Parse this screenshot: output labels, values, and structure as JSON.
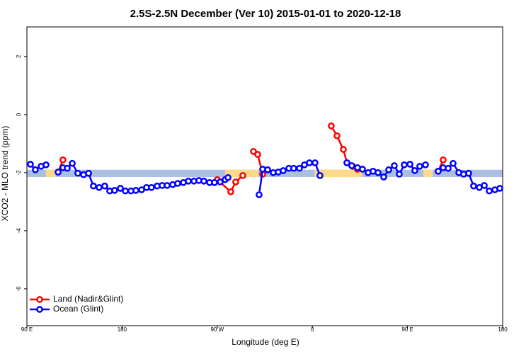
{
  "chart_data": {
    "type": "line",
    "title": "2.5S-2.5N December (Ver 10)   2015-01-01 to 2020-12-18",
    "x_label": "Longitude (deg E)",
    "y_label": "XCO2 - MLO trend (ppm)",
    "xlim": [
      90,
      540
    ],
    "xticks": [
      {
        "value": 90,
        "label": "90 E"
      },
      {
        "value": 180,
        "label": "180"
      },
      {
        "value": 270,
        "label": "90 W"
      },
      {
        "value": 360,
        "label": "0"
      },
      {
        "value": 450,
        "label": "90 E"
      },
      {
        "value": 540,
        "label": "180"
      }
    ],
    "ylim": [
      -7.27,
      3.02
    ],
    "yticks": [
      -6,
      -4,
      -2,
      0,
      2
    ],
    "legend": "bottom-left",
    "band": {
      "ylim": [
        -2.15,
        -1.9
      ],
      "color": "#a9c0e2",
      "land_color": "#fdd98a",
      "land_ranges": [
        [
          108,
          117
        ],
        [
          277.5,
          309
        ],
        [
          362,
          407
        ],
        [
          465,
          474
        ]
      ]
    },
    "series": [
      {
        "name": "Land (Nadir&Glint)",
        "color": "#ff0000",
        "x": [
          119.5,
          124.1,
          null,
          270.1,
          282.8,
          287.5,
          294.2,
          null,
          304.3,
          308.3,
          313.0,
          null,
          377.9,
          383.3,
          389.3,
          392.7,
          398.0,
          402.7,
          null,
          479.0,
          483.7
        ],
        "values": [
          -1.98,
          -1.56,
          null,
          -2.24,
          -2.66,
          -2.32,
          -2.1,
          null,
          -1.27,
          -1.37,
          -2.05,
          null,
          -0.39,
          -0.73,
          -1.2,
          -1.66,
          -1.78,
          -1.88,
          null,
          -1.95,
          -1.56
        ]
      },
      {
        "name": "Ocean (Glint)",
        "color": "#0000ff",
        "x": [
          93.3,
          98.0,
          103.5,
          108.1,
          null,
          119.5,
          124.1,
          128.2,
          132.9,
          138.2,
          143.6,
          148.3,
          152.9,
          158.3,
          163.6,
          168.3,
          173.0,
          178.4,
          183.1,
          188.4,
          193.1,
          198.5,
          203.2,
          207.8,
          213.2,
          217.9,
          222.6,
          227.9,
          232.6,
          238.0,
          242.7,
          248.0,
          252.7,
          257.4,
          262.8,
          267.4,
          272.8,
          277.5,
          280.2,
          null,
          309.6,
          313.0,
          317.7,
          323.0,
          327.7,
          332.4,
          337.8,
          342.4,
          347.8,
          352.5,
          357.2,
          362.5,
          367.2,
          null,
          392.7,
          397.3,
          402.7,
          407.4,
          412.7,
          417.4,
          422.1,
          427.5,
          432.2,
          437.5,
          442.2,
          446.9,
          452.3,
          456.9,
          461.6,
          467.0,
          null,
          479.0,
          483.7,
          488.4,
          493.1,
          498.5,
          503.1,
          507.8,
          512.5,
          517.9,
          522.6,
          527.3,
          532.6,
          537.3
        ],
        "values": [
          -1.71,
          -1.9,
          -1.78,
          -1.73,
          null,
          -1.98,
          -1.83,
          -1.85,
          -1.68,
          -2.02,
          -2.07,
          -2.02,
          -2.46,
          -2.51,
          -2.46,
          -2.63,
          -2.61,
          -2.54,
          -2.63,
          -2.63,
          -2.61,
          -2.59,
          -2.51,
          -2.51,
          -2.46,
          -2.44,
          -2.44,
          -2.41,
          -2.37,
          -2.34,
          -2.29,
          -2.29,
          -2.27,
          -2.29,
          -2.34,
          -2.34,
          -2.32,
          -2.24,
          -2.17,
          null,
          -2.76,
          -1.88,
          -1.9,
          -2.0,
          -1.98,
          -1.93,
          -1.85,
          -1.85,
          -1.85,
          -1.73,
          -1.66,
          -1.66,
          -2.1,
          null,
          -1.66,
          -1.76,
          -1.83,
          -1.88,
          -2.0,
          -1.95,
          -2.0,
          -2.15,
          -1.9,
          -1.76,
          -2.05,
          -1.73,
          -1.71,
          -1.93,
          -1.78,
          -1.73,
          null,
          -1.95,
          -1.83,
          -1.85,
          -1.68,
          -2.0,
          -2.05,
          -2.02,
          -2.46,
          -2.51,
          -2.44,
          -2.63,
          -2.59,
          -2.54
        ]
      }
    ]
  }
}
